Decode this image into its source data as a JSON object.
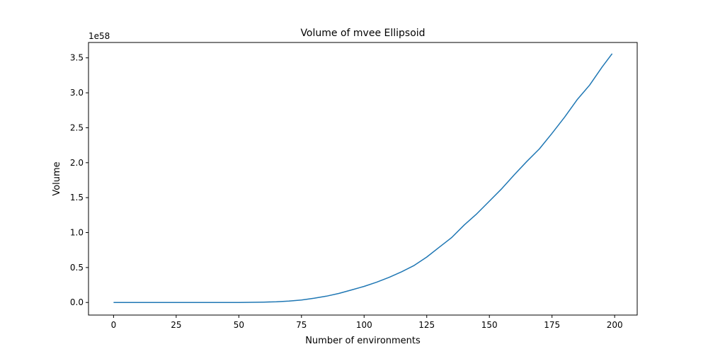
{
  "chart_data": {
    "type": "line",
    "title": "Volume of mvee Ellipsoid",
    "xlabel": "Number of environments",
    "ylabel": "Volume",
    "y_offset_label": "1e58",
    "y_scale_exponent": 58,
    "xlim": [
      -10,
      209
    ],
    "ylim": [
      -0.18,
      3.72
    ],
    "xticks": [
      0,
      25,
      50,
      75,
      100,
      125,
      150,
      175,
      200
    ],
    "xtick_labels": [
      "0",
      "25",
      "50",
      "75",
      "100",
      "125",
      "150",
      "175",
      "200"
    ],
    "yticks": [
      0.0,
      0.5,
      1.0,
      1.5,
      2.0,
      2.5,
      3.0,
      3.5
    ],
    "ytick_labels": [
      "0.0",
      "0.5",
      "1.0",
      "1.5",
      "2.0",
      "2.5",
      "3.0",
      "3.5"
    ],
    "grid": false,
    "series": [
      {
        "color": "#1f77b4",
        "x": [
          0,
          10,
          20,
          30,
          40,
          50,
          55,
          60,
          65,
          70,
          75,
          80,
          85,
          90,
          95,
          100,
          105,
          110,
          115,
          120,
          125,
          130,
          135,
          140,
          145,
          150,
          155,
          160,
          165,
          170,
          175,
          180,
          185,
          190,
          195,
          199
        ],
        "y": [
          0.0,
          0.0,
          0.0,
          0.0,
          0.0,
          0.0,
          0.002,
          0.005,
          0.01,
          0.02,
          0.035,
          0.06,
          0.09,
          0.13,
          0.18,
          0.23,
          0.29,
          0.36,
          0.44,
          0.53,
          0.65,
          0.79,
          0.93,
          1.11,
          1.27,
          1.45,
          1.63,
          1.83,
          2.02,
          2.2,
          2.42,
          2.65,
          2.9,
          3.11,
          3.37,
          3.56
        ]
      }
    ]
  }
}
